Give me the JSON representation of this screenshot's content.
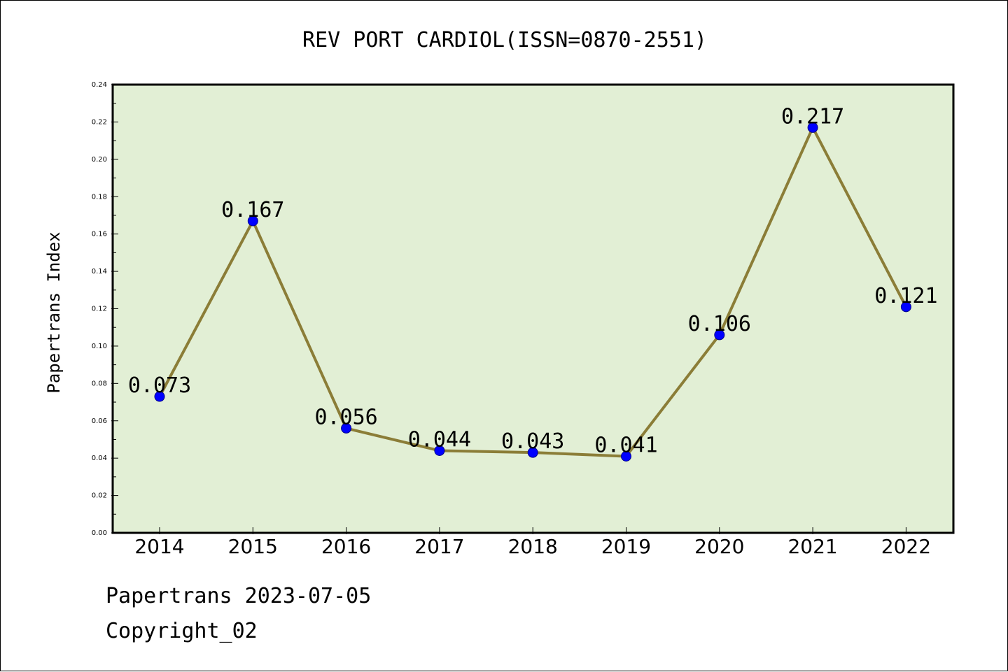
{
  "chart_data": {
    "type": "line",
    "title": "REV PORT CARDIOL(ISSN=0870-2551)",
    "xlabel": "",
    "ylabel": "Papertrans Index",
    "categories": [
      "2014",
      "2015",
      "2016",
      "2017",
      "2018",
      "2019",
      "2020",
      "2021",
      "2022"
    ],
    "series": [
      {
        "values": [
          0.073,
          0.167,
          0.056,
          0.044,
          0.043,
          0.041,
          0.106,
          0.217,
          0.121
        ],
        "labels": [
          "0.073",
          "0.167",
          "0.056",
          "0.044",
          "0.043",
          "0.041",
          "0.106",
          "0.217",
          "0.121"
        ]
      }
    ],
    "ylim": [
      0,
      0.24
    ],
    "yticks": [
      "0.00",
      "0.02",
      "0.04",
      "0.06",
      "0.08",
      "0.10",
      "0.12",
      "0.14",
      "0.16",
      "0.18",
      "0.20",
      "0.22",
      "0.24"
    ],
    "grid": false,
    "legend": false
  },
  "colors": {
    "plot_background": "#e2efd5",
    "line": "#8b7d37",
    "marker": "#0000ff"
  },
  "footer": {
    "line1": "Papertrans 2023-07-05",
    "line2": "Copyright_02"
  }
}
